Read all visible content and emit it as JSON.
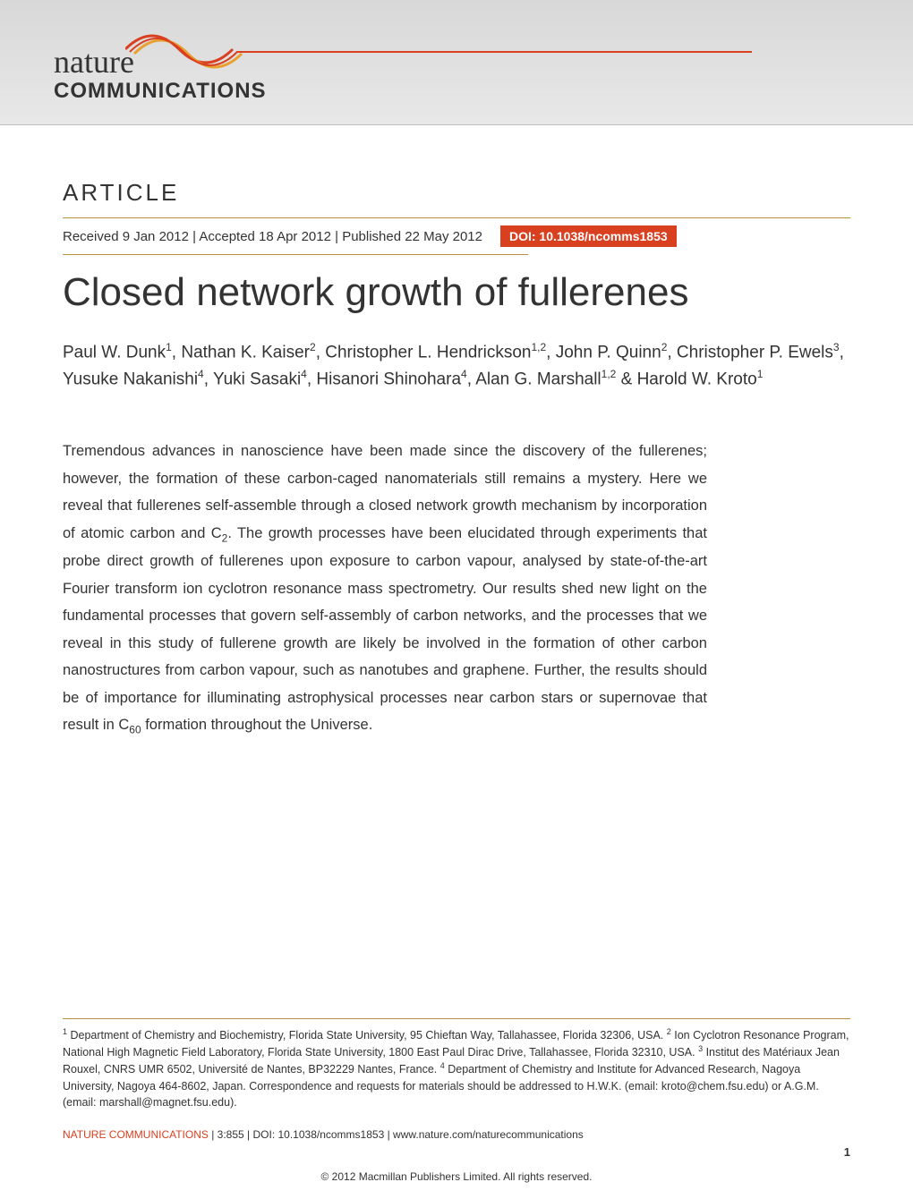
{
  "logo": {
    "nature": "nature",
    "communications": "COMMUNICATIONS",
    "wave_colors": [
      "#d94020",
      "#e8a030"
    ]
  },
  "article_label": "ARTICLE",
  "divider_color": "#b89040",
  "dates": {
    "received": "Received 9 Jan 2012",
    "accepted": "Accepted 18 Apr 2012",
    "published": "Published 22 May 2012"
  },
  "doi": {
    "label": "DOI: 10.1038/ncomms1853",
    "bg_color": "#d94020",
    "text_color": "#ffffff"
  },
  "title": "Closed network growth of fullerenes",
  "authors_html": "Paul W. Dunk<sup>1</sup>, Nathan K. Kaiser<sup>2</sup>, Christopher L. Hendrickson<sup>1,2</sup>, John P. Quinn<sup>2</sup>, Christopher P. Ewels<sup>3</sup>, Yusuke Nakanishi<sup>4</sup>, Yuki Sasaki<sup>4</sup>, Hisanori Shinohara<sup>4</sup>, Alan G. Marshall<sup>1,2</sup> & Harold W. Kroto<sup>1</sup>",
  "abstract_html": "Tremendous advances in nanoscience have been made since the discovery of the fullerenes; however, the formation of these carbon-caged nanomaterials still remains a mystery. Here we reveal that fullerenes self-assemble through a closed network growth mechanism by incorporation of atomic carbon and C<sub>2</sub>. The growth processes have been elucidated through experiments that probe direct growth of fullerenes upon exposure to carbon vapour, analysed by state-of-the-art Fourier transform ion cyclotron resonance mass spectrometry. Our results shed new light on the fundamental processes that govern self-assembly of carbon networks, and the processes that we reveal in this study of fullerene growth are likely be involved in the formation of other carbon nanostructures from carbon vapour, such as nanotubes and graphene. Further, the results should be of importance for illuminating astrophysical processes near carbon stars or supernovae that result in C<sub>60</sub> formation throughout the Universe.",
  "affiliations_html": "<sup>1</sup> Department of Chemistry and Biochemistry, Florida State University, 95 Chieftan Way, Tallahassee, Florida 32306, USA. <sup>2</sup> Ion Cyclotron Resonance Program, National High Magnetic Field Laboratory, Florida State University, 1800 East Paul Dirac Drive, Tallahassee, Florida 32310, USA. <sup>3</sup> Institut des Matériaux Jean Rouxel, CNRS UMR 6502, Université de Nantes, BP32229 Nantes, France. <sup>4</sup> Department of Chemistry and Institute for Advanced Research, Nagoya University, Nagoya 464-8602, Japan. Correspondence and requests for materials should be addressed to H.W.K. (email: kroto@chem.fsu.edu) or A.G.M. (email: marshall@magnet.fsu.edu).",
  "citation": {
    "journal": "NATURE COMMUNICATIONS",
    "details": " | 3:855 | DOI: 10.1038/ncomms1853 | www.nature.com/naturecommunications"
  },
  "page_number": "1",
  "copyright": "© 2012 Macmillan Publishers Limited. All rights reserved.",
  "colors": {
    "banner_bg_top": "#d8d8d8",
    "banner_bg_bottom": "#e8e8e8",
    "accent_orange": "#d94020",
    "text_primary": "#333333",
    "divider": "#b89040",
    "page_bg": "#ffffff"
  },
  "typography": {
    "title_fontsize": 44,
    "authors_fontsize": 19,
    "abstract_fontsize": 16.5,
    "article_label_fontsize": 26,
    "affiliations_fontsize": 12.5,
    "body_font": "Arial, sans-serif"
  }
}
